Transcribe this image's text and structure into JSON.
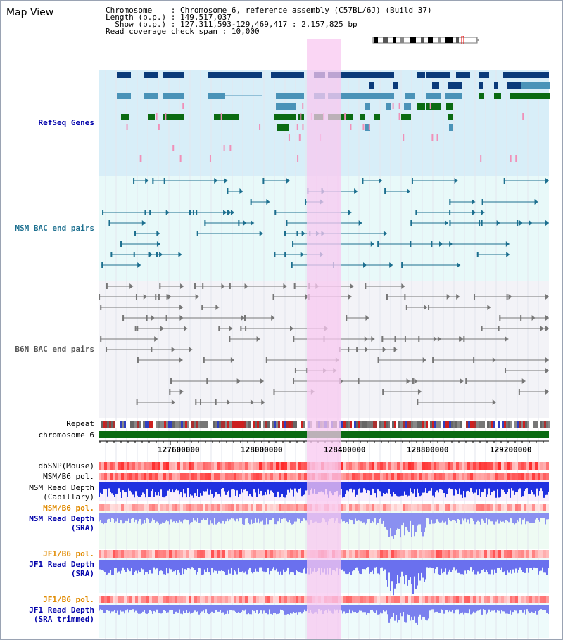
{
  "app": {
    "title": "Map View"
  },
  "header": {
    "chromosome_label": "Chromosome",
    "chromosome_value": "Chromosome 6, reference assembly (C57BL/6J) (Build 37)",
    "length_label": "Length (b.p.)",
    "length_value": "149,517,037",
    "show_label": "Show (b.p.)",
    "show_value": "127,311,593-129,469,417 : 2,157,825 bp",
    "coverage_label": "Read coverage check span",
    "coverage_value": "10,000"
  },
  "tracks": {
    "refseq": "RefSeq Genes",
    "msm_bac": "MSM BAC end pairs",
    "b6n_bac": "B6N BAC end pairs",
    "repeat": "Repeat",
    "chromosome": "chromosome 6",
    "dbsnp": "dbSNP(Mouse)",
    "msm_pol": "MSM/B6 pol.",
    "msm_depth_cap_1": "MSM Read Depth",
    "msm_depth_cap_2": "(Capillary)",
    "msm_pol2": "MSM/B6 pol.",
    "msm_depth_sra_1": "MSM Read Depth",
    "msm_depth_sra_2": "(SRA)",
    "jf1_pol": "JF1/B6 pol.",
    "jf1_depth_sra_1": "JF1 Read Depth",
    "jf1_depth_sra_2": "(SRA)",
    "jf1_pol2": "JF1/B6 pol.",
    "jf1_depth_trim_1": "JF1 Read Depth",
    "jf1_depth_trim_2": "(SRA trimmed)"
  },
  "axis": {
    "ticks": [
      "127600000",
      "128000000",
      "128400000",
      "128800000",
      "129200000"
    ]
  },
  "colors": {
    "refseq_dark": "#0b3b7a",
    "refseq_mid": "#4a93b8",
    "refseq_green": "#0a6b12",
    "msm_line": "#1c6f8f",
    "b6n_line": "#777777",
    "highlight": "#f8c8f0",
    "label_blue": "#0000aa",
    "label_orange": "#e08a00",
    "label_teal": "#1c6f8f"
  }
}
